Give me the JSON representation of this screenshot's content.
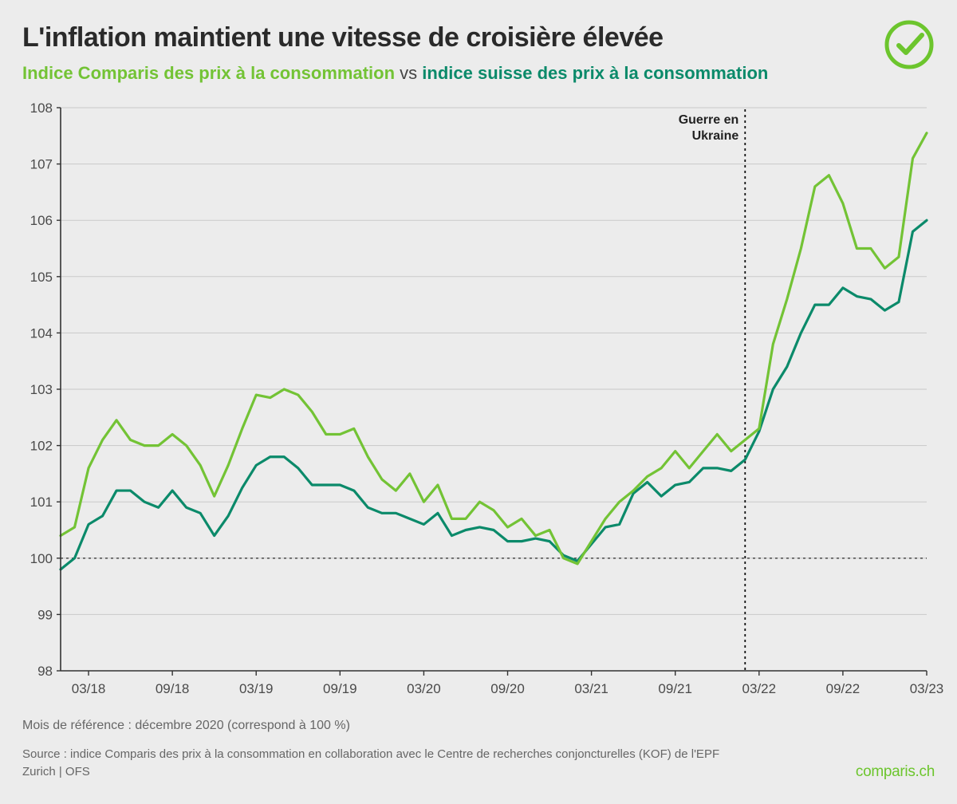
{
  "title": "L'inflation maintient une vitesse de croisière élevée",
  "subtitle": {
    "series_a_label": "Indice Comparis des prix à la consommation",
    "vs": "vs",
    "series_b_label": "indice suisse des prix à la consommation"
  },
  "chart": {
    "type": "line",
    "background_color": "#ececec",
    "grid_color": "#c9c9c9",
    "axis_color": "#333333",
    "tick_label_color": "#4a4a4a",
    "tick_fontsize": 17,
    "line_width": 3.2,
    "ylim": [
      98,
      108
    ],
    "ytick_step": 1,
    "y_ticks": [
      98,
      99,
      100,
      101,
      102,
      103,
      104,
      105,
      106,
      107,
      108
    ],
    "x_tick_labels": [
      "03/18",
      "09/18",
      "03/19",
      "09/19",
      "03/20",
      "09/20",
      "03/21",
      "09/21",
      "03/22",
      "09/22",
      "03/23"
    ],
    "x_tick_indices": [
      2,
      8,
      14,
      20,
      26,
      32,
      38,
      44,
      50,
      56,
      62
    ],
    "x_count": 63,
    "baseline": {
      "value": 100,
      "dash": "3,4",
      "color": "#555555",
      "width": 1.6
    },
    "annotation": {
      "label_line1": "Guerre en",
      "label_line2": "Ukraine",
      "x_index": 49,
      "dash": "3,4",
      "color": "#111111",
      "width": 1.8,
      "label_fontsize": 16
    },
    "series": [
      {
        "name": "comparis",
        "color": "#73c335",
        "values": [
          100.4,
          100.55,
          101.6,
          102.1,
          102.45,
          102.1,
          102.0,
          102.0,
          102.2,
          102.0,
          101.65,
          101.1,
          101.65,
          102.3,
          102.9,
          102.85,
          103.0,
          102.9,
          102.6,
          102.2,
          102.2,
          102.3,
          101.8,
          101.4,
          101.2,
          101.5,
          101.0,
          101.3,
          100.7,
          100.7,
          101.0,
          100.85,
          100.55,
          100.7,
          100.4,
          100.5,
          100.0,
          99.9,
          100.3,
          100.7,
          101.0,
          101.2,
          101.45,
          101.6,
          101.9,
          101.6,
          101.9,
          102.2,
          101.9,
          102.1,
          102.3,
          103.8,
          104.6,
          105.5,
          106.6,
          106.8,
          106.3,
          105.5,
          105.5,
          105.15,
          105.35,
          107.1,
          107.55
        ]
      },
      {
        "name": "suisse",
        "color": "#0b8a6a",
        "values": [
          99.8,
          100.0,
          100.6,
          100.75,
          101.2,
          101.2,
          101.0,
          100.9,
          101.2,
          100.9,
          100.8,
          100.4,
          100.75,
          101.25,
          101.65,
          101.8,
          101.8,
          101.6,
          101.3,
          101.3,
          101.3,
          101.2,
          100.9,
          100.8,
          100.8,
          100.7,
          100.6,
          100.8,
          100.4,
          100.5,
          100.55,
          100.5,
          100.3,
          100.3,
          100.35,
          100.3,
          100.05,
          99.95,
          100.25,
          100.55,
          100.6,
          101.15,
          101.35,
          101.1,
          101.3,
          101.35,
          101.6,
          101.6,
          101.55,
          101.75,
          102.25,
          103.0,
          103.4,
          104.0,
          104.5,
          104.5,
          104.8,
          104.65,
          104.6,
          104.4,
          104.55,
          105.8,
          106.0
        ]
      }
    ]
  },
  "footnote": "Mois de référence : décembre 2020 (correspond à 100 %)",
  "source": "Source : indice Comparis des prix à la consommation en collaboration avec le Centre de recherches conjoncturelles (KOF) de l'EPF Zurich | OFS",
  "brand": "comparis.ch",
  "logo_color": "#6cc52d"
}
